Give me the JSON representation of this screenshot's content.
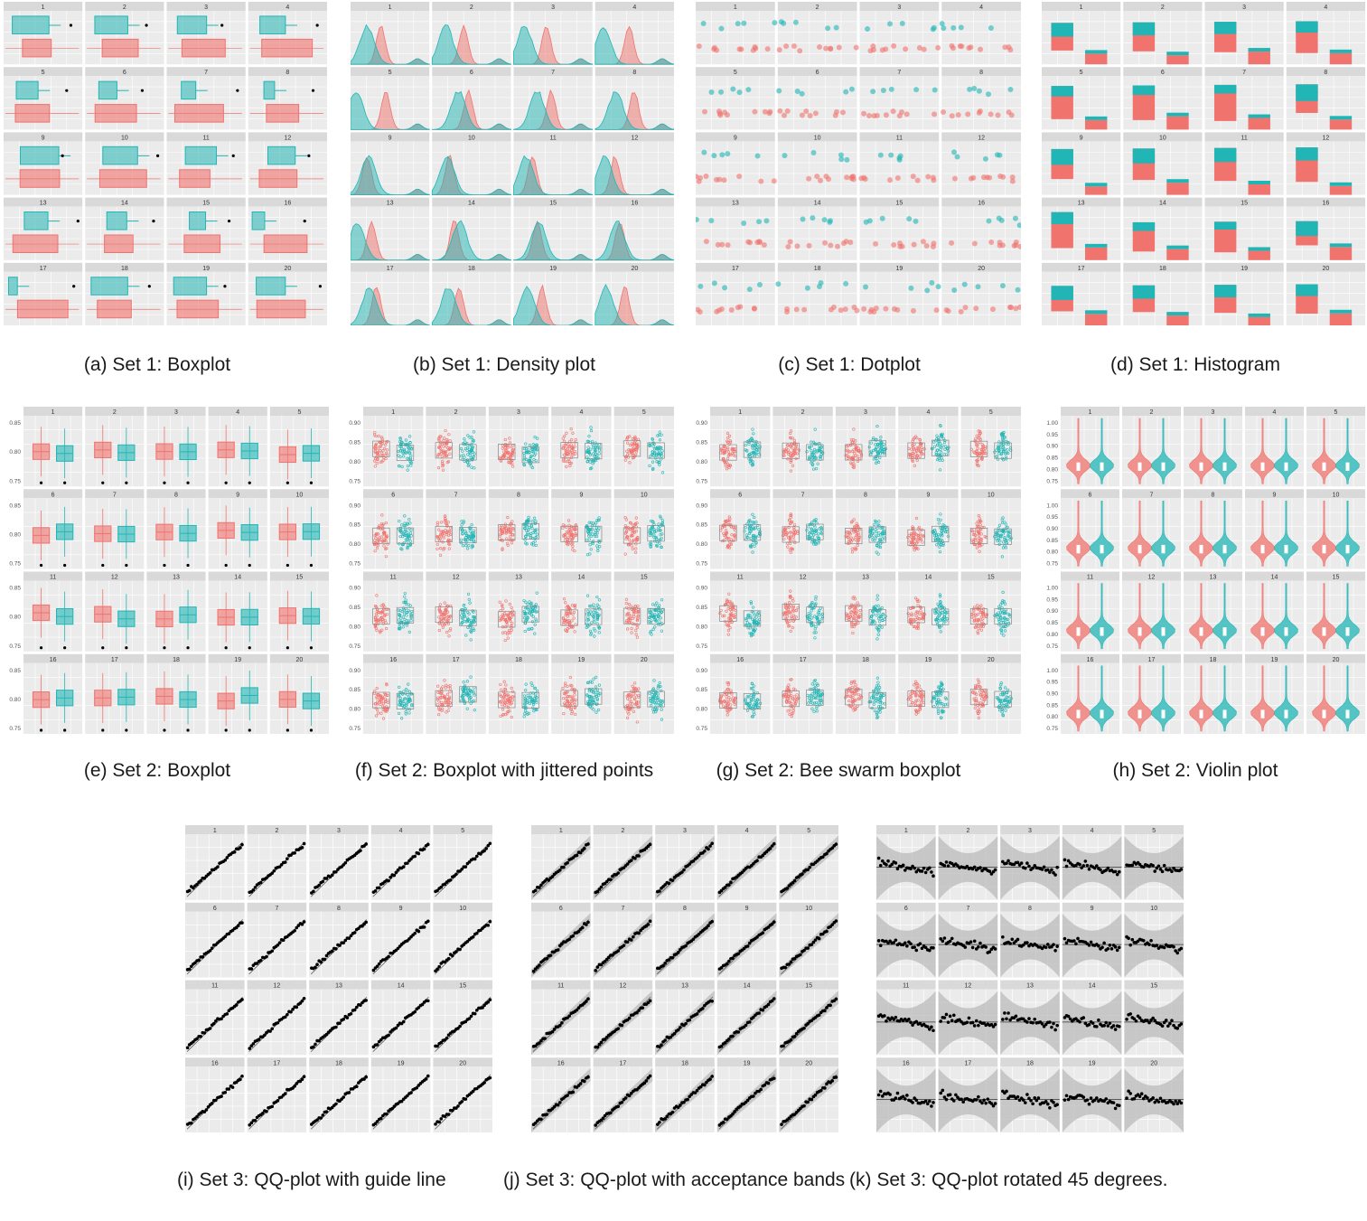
{
  "panels": [
    {
      "id": "a",
      "kind": "boxplot_h",
      "caption": "(a) Set 1: Boxplot",
      "cols": 4,
      "rows": 5,
      "labels": [
        "1",
        "2",
        "3",
        "4",
        "5",
        "6",
        "7",
        "8",
        "9",
        "10",
        "11",
        "12",
        "13",
        "14",
        "15",
        "16",
        "17",
        "18",
        "19",
        "20"
      ]
    },
    {
      "id": "b",
      "kind": "density",
      "caption": "(b) Set 1: Density plot",
      "cols": 4,
      "rows": 5,
      "labels": [
        "1",
        "2",
        "3",
        "4",
        "5",
        "6",
        "7",
        "8",
        "9",
        "10",
        "11",
        "12",
        "13",
        "14",
        "15",
        "16",
        "17",
        "18",
        "19",
        "20"
      ]
    },
    {
      "id": "c",
      "kind": "dotplot",
      "caption": "(c) Set 1: Dotplot",
      "cols": 4,
      "rows": 5,
      "labels": [
        "1",
        "2",
        "3",
        "4",
        "5",
        "6",
        "7",
        "8",
        "9",
        "10",
        "11",
        "12",
        "13",
        "14",
        "15",
        "16",
        "17",
        "18",
        "19",
        "20"
      ]
    },
    {
      "id": "d",
      "kind": "histogram",
      "caption": "(d) Set 1: Histogram",
      "cols": 4,
      "rows": 5,
      "labels": [
        "1",
        "2",
        "3",
        "4",
        "5",
        "6",
        "7",
        "8",
        "9",
        "10",
        "11",
        "12",
        "13",
        "14",
        "15",
        "16",
        "17",
        "18",
        "19",
        "20"
      ]
    },
    {
      "id": "e",
      "kind": "boxplot_v",
      "caption": "(e) Set 2: Boxplot",
      "cols": 5,
      "rows": 4,
      "yticks": [
        "0.85",
        "0.80",
        "0.75"
      ],
      "labels": [
        "1",
        "2",
        "3",
        "4",
        "5",
        "6",
        "7",
        "8",
        "9",
        "10",
        "11",
        "12",
        "13",
        "14",
        "15",
        "16",
        "17",
        "18",
        "19",
        "20"
      ]
    },
    {
      "id": "f",
      "kind": "jitter",
      "caption": "(f) Set 2: Boxplot with jittered points",
      "cols": 5,
      "rows": 4,
      "yticks": [
        "0.90",
        "0.85",
        "0.80",
        "0.75"
      ],
      "labels": [
        "1",
        "2",
        "3",
        "4",
        "5",
        "6",
        "7",
        "8",
        "9",
        "10",
        "11",
        "12",
        "13",
        "14",
        "15",
        "16",
        "17",
        "18",
        "19",
        "20"
      ]
    },
    {
      "id": "g",
      "kind": "beeswarm",
      "caption": "(g) Set 2: Bee swarm boxplot",
      "cols": 5,
      "rows": 4,
      "yticks": [
        "0.90",
        "0.85",
        "0.80",
        "0.75"
      ],
      "labels": [
        "1",
        "2",
        "3",
        "4",
        "5",
        "6",
        "7",
        "8",
        "9",
        "10",
        "11",
        "12",
        "13",
        "14",
        "15",
        "16",
        "17",
        "18",
        "19",
        "20"
      ]
    },
    {
      "id": "h",
      "kind": "violin",
      "caption": "(h) Set 2: Violin plot",
      "cols": 5,
      "rows": 4,
      "yticks": [
        "1.00",
        "0.95",
        "0.90",
        "0.85",
        "0.80",
        "0.75"
      ],
      "labels": [
        "1",
        "2",
        "3",
        "4",
        "5",
        "6",
        "7",
        "8",
        "9",
        "10",
        "11",
        "12",
        "13",
        "14",
        "15",
        "16",
        "17",
        "18",
        "19",
        "20"
      ]
    },
    {
      "id": "i",
      "kind": "qq",
      "caption": "(i) Set 3: QQ-plot with guide line",
      "cols": 5,
      "rows": 4,
      "labels": [
        "1",
        "2",
        "3",
        "4",
        "5",
        "6",
        "7",
        "8",
        "9",
        "10",
        "11",
        "12",
        "13",
        "14",
        "15",
        "16",
        "17",
        "18",
        "19",
        "20"
      ]
    },
    {
      "id": "j",
      "kind": "qqband",
      "caption": "(j) Set 3: QQ-plot with acceptance bands",
      "cols": 5,
      "rows": 4,
      "labels": [
        "1",
        "2",
        "3",
        "4",
        "5",
        "6",
        "7",
        "8",
        "9",
        "10",
        "11",
        "12",
        "13",
        "14",
        "15",
        "16",
        "17",
        "18",
        "19",
        "20"
      ]
    },
    {
      "id": "k",
      "kind": "qqrot",
      "caption": "(k) Set 3: QQ-plot rotated 45 degrees.",
      "cols": 5,
      "rows": 4,
      "labels": [
        "1",
        "2",
        "3",
        "4",
        "5",
        "6",
        "7",
        "8",
        "9",
        "10",
        "11",
        "12",
        "13",
        "14",
        "15",
        "16",
        "17",
        "18",
        "19",
        "20"
      ]
    }
  ],
  "colors": {
    "red": "#f0736e",
    "teal": "#22b5b5",
    "panel_bg": "#ebebeb",
    "strip_bg": "#d9d9d9",
    "grid": "#ffffff",
    "dot": "#000000"
  }
}
